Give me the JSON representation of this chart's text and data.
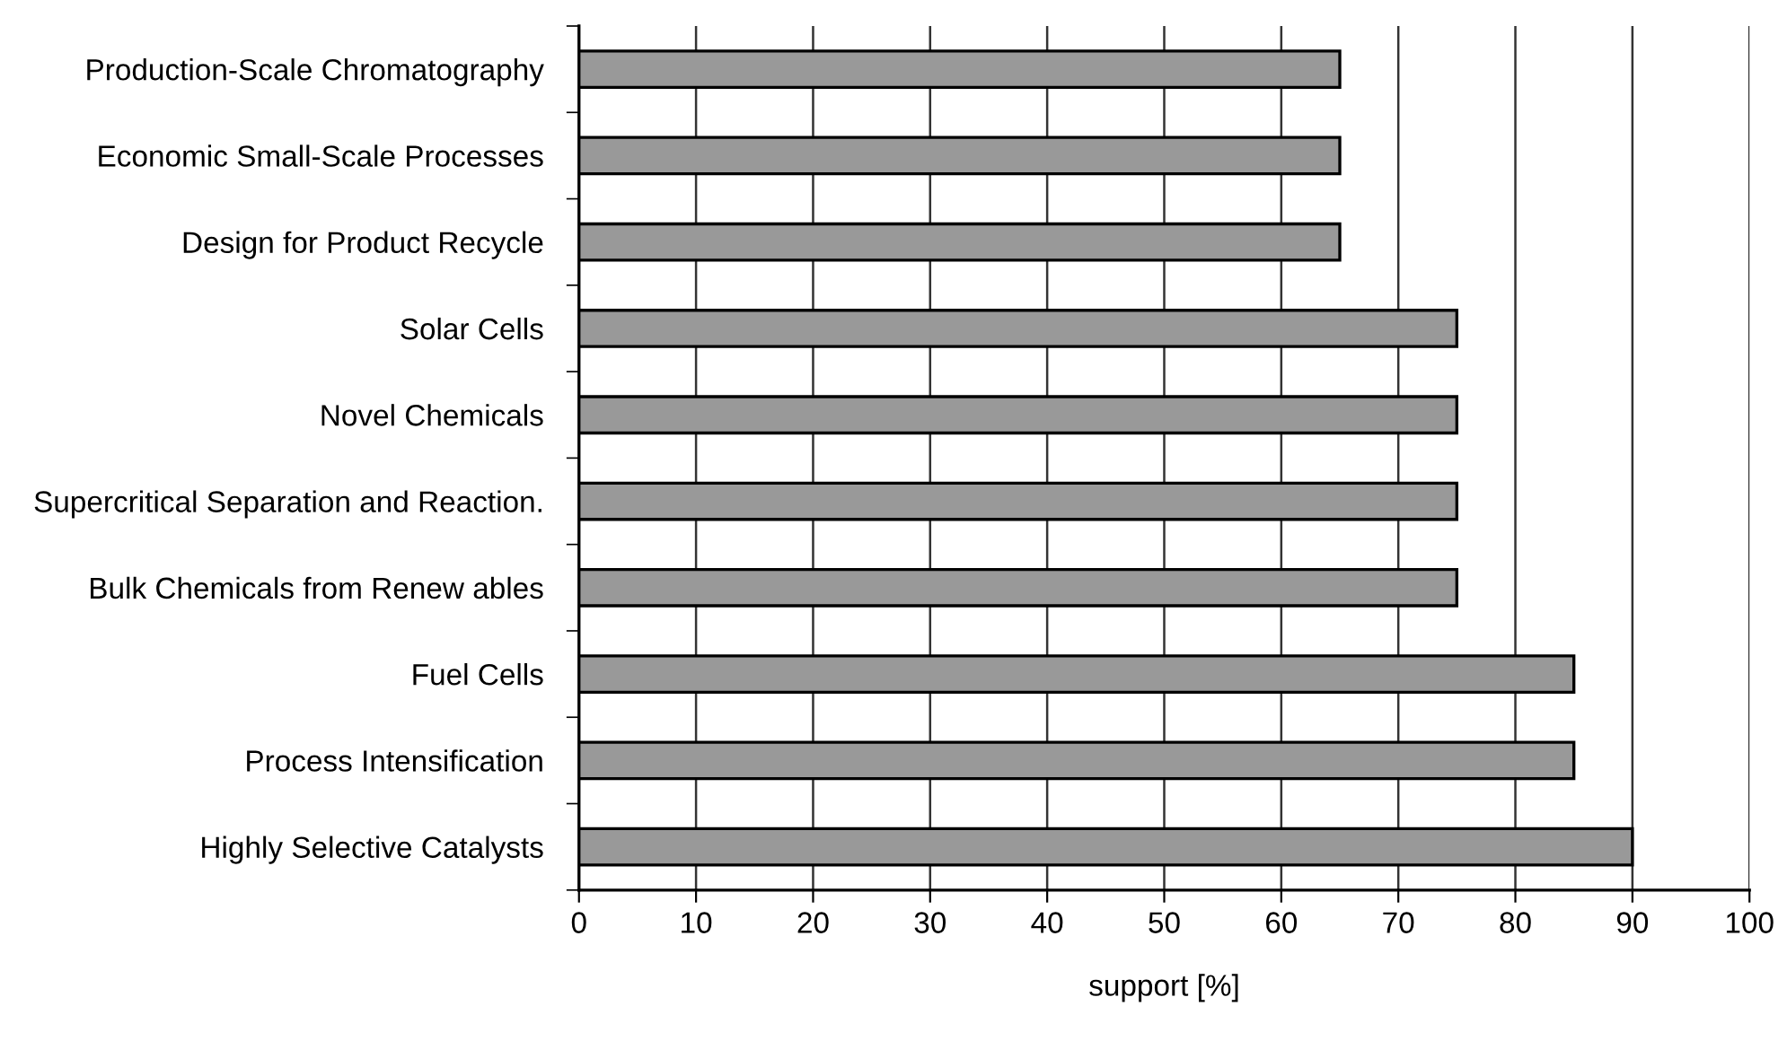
{
  "chart_data": {
    "type": "bar",
    "orientation": "horizontal",
    "xlabel": "support [%]",
    "categories": [
      "Production-Scale Chromatography",
      "Economic Small-Scale Processes",
      "Design for Product Recycle",
      "Solar Cells",
      "Novel Chemicals",
      "Supercritical Separation and Reaction.",
      "Bulk Chemicals from Renew ables",
      "Fuel Cells",
      "Process Intensification",
      "Highly Selective Catalysts"
    ],
    "values": [
      65,
      65,
      65,
      75,
      75,
      75,
      75,
      85,
      85,
      90
    ],
    "color": "#999999",
    "xlim": [
      0,
      100
    ],
    "xticks": [
      0,
      10,
      20,
      30,
      40,
      50,
      60,
      70,
      80,
      90,
      100
    ],
    "grid": "x"
  }
}
